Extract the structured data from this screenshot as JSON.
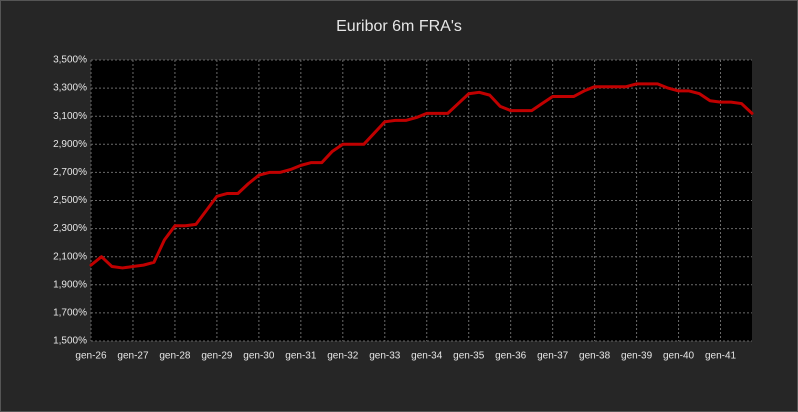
{
  "chart_data": {
    "type": "line",
    "title": "Euribor 6m FRA's",
    "categories": [
      "gen-26",
      null,
      null,
      null,
      "gen-27",
      null,
      null,
      null,
      "gen-28",
      null,
      null,
      null,
      "gen-29",
      null,
      null,
      null,
      "gen-30",
      null,
      null,
      null,
      "gen-31",
      null,
      null,
      null,
      "gen-32",
      null,
      null,
      null,
      "gen-33",
      null,
      null,
      null,
      "gen-34",
      null,
      null,
      null,
      "gen-35",
      null,
      null,
      null,
      "gen-36",
      null,
      null,
      null,
      "gen-37",
      null,
      null,
      null,
      "gen-38",
      null,
      null,
      null,
      "gen-39",
      null,
      null,
      null,
      "gen-40",
      null,
      null,
      null,
      "gen-41",
      null,
      null,
      null
    ],
    "series": [
      {
        "color": "#c00000",
        "values": [
          2.04,
          2.1,
          2.03,
          2.02,
          2.03,
          2.04,
          2.06,
          2.22,
          2.32,
          2.32,
          2.33,
          2.43,
          2.53,
          2.55,
          2.55,
          2.62,
          2.68,
          2.7,
          2.7,
          2.72,
          2.75,
          2.77,
          2.77,
          2.85,
          2.9,
          2.9,
          2.9,
          2.98,
          3.06,
          3.07,
          3.07,
          3.09,
          3.12,
          3.12,
          3.12,
          3.19,
          3.26,
          3.27,
          3.25,
          3.17,
          3.14,
          3.14,
          3.14,
          3.19,
          3.24,
          3.24,
          3.24,
          3.28,
          3.31,
          3.31,
          3.31,
          3.31,
          3.33,
          3.33,
          3.33,
          3.3,
          3.28,
          3.28,
          3.26,
          3.21,
          3.2,
          3.2,
          3.19,
          3.12
        ]
      }
    ],
    "ylim": [
      1.5,
      3.5
    ],
    "yticks": [
      {
        "value": 1.5,
        "label": "1,500%"
      },
      {
        "value": 1.7,
        "label": "1,700%"
      },
      {
        "value": 1.9,
        "label": "1,900%"
      },
      {
        "value": 2.1,
        "label": "2,100%"
      },
      {
        "value": 2.3,
        "label": "2,300%"
      },
      {
        "value": 2.5,
        "label": "2,500%"
      },
      {
        "value": 2.7,
        "label": "2,700%"
      },
      {
        "value": 2.9,
        "label": "2,900%"
      },
      {
        "value": 3.1,
        "label": "3,100%"
      },
      {
        "value": 3.3,
        "label": "3,300%"
      },
      {
        "value": 3.5,
        "label": "3,500%"
      }
    ],
    "grid": true
  }
}
